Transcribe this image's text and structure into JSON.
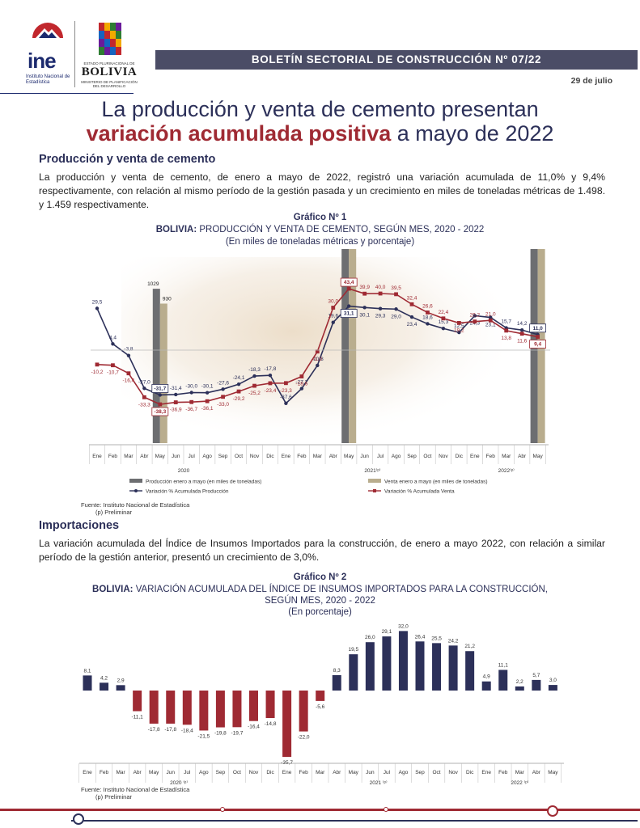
{
  "header": {
    "ine_logo_text": "ine",
    "ine_subtitle": "Instituto Nacional de Estadística",
    "bolivia_small": "ESTADO PLURINACIONAL DE",
    "bolivia_word": "BOLIVIA",
    "bolivia_ministry": "MINISTERIO DE PLANIFICACIÓN DEL DESARROLLO",
    "bulletin_title": "BOLETÍN SECTORIAL DE CONSTRUCCIÓN Nº 07/22",
    "date": "29 de julio"
  },
  "headline": {
    "line1": "La producción y venta de cemento presentan",
    "line2_highlight": "variación acumulada positiva",
    "line2_rest": " a mayo de 2022"
  },
  "section1": {
    "title": "Producción y venta de cemento",
    "paragraph": "La producción y venta de cemento, de enero a mayo de 2022, registró una variación acumulada de 11,0% y 9,4% respectivamente, con relación al mismo período de la gestión pasada y un crecimiento en miles de toneladas métricas de 1.498. y 1.459 respectivamente."
  },
  "chart1_titles": {
    "number": "Gráfico Nº 1",
    "title_prefix": "BOLIVIA:",
    "title_rest": " PRODUCCIÓN Y VENTA DE CEMENTO, SEGÚN MES, 2020 - 2022",
    "subtitle": "(En miles de toneladas métricas y porcentaje)",
    "source": "Fuente: Instituto Nacional de Estadística",
    "note": "(p) Preliminar"
  },
  "section2": {
    "title": "Importaciones",
    "paragraph": "La variación acumulada del Índice de Insumos Importados para la construcción, de enero a mayo 2022, con relación a similar período de la gestión anterior, presentó un crecimiento de 3,0%."
  },
  "chart2_titles": {
    "number": "Gráfico Nº 2",
    "title_prefix": "BOLIVIA:",
    "title_rest": " VARIACIÓN ACUMULADA DEL ÍNDICE DE INSUMOS IMPORTADOS PARA LA CONSTRUCCIÓN,",
    "title_line2": "SEGÚN MES, 2020 - 2022",
    "subtitle": "(En porcentaje)",
    "source": "Fuente: Instituto Nacional de Estadística",
    "note": "(p) Preliminar"
  },
  "colors": {
    "navy": "#2c3059",
    "red": "#9f2a33",
    "bar_gray": "#6d6e71",
    "bar_tan": "#b9ad8e",
    "header_bar": "#4b4d66"
  },
  "chart_data": [
    {
      "type": "line",
      "title": "BOLIVIA: PRODUCCIÓN Y VENTA DE CEMENTO, SEGÚN MES, 2020 - 2022",
      "categories": [
        "Ene",
        "Feb",
        "Mar",
        "Abr",
        "May",
        "Jun",
        "Jul",
        "Ago",
        "Sep",
        "Oct",
        "Nov",
        "Dic",
        "Ene",
        "Feb",
        "Mar",
        "Abr",
        "May",
        "Jun",
        "Jul",
        "Ago",
        "Sep",
        "Oct",
        "Nov",
        "Dic",
        "Ene",
        "Feb",
        "Mar",
        "Abr",
        "May"
      ],
      "year_groups": [
        {
          "label": "2020",
          "start": 0,
          "end": 11
        },
        {
          "label": "2021⁽ᵖ⁾",
          "start": 12,
          "end": 23
        },
        {
          "label": "2022⁽ᵖ⁾",
          "start": 24,
          "end": 28
        }
      ],
      "series": [
        {
          "name": "Variación % Acumulada Producción",
          "color": "#2c3059",
          "values": [
            29.5,
            4.4,
            -3.8,
            -27.0,
            -31.7,
            -31.4,
            -30.0,
            -30.1,
            -27.6,
            -24.1,
            -18.3,
            -17.8,
            -37.6,
            -27.2,
            -10.8,
            19.6,
            31.1,
            30.1,
            29.3,
            29.0,
            23.4,
            18.6,
            15.3,
            12.5,
            24.3,
            23.1,
            15.7,
            14.2,
            11.0
          ],
          "labels": [
            "29,5",
            "4,4",
            "-3,8",
            "-27,0",
            "-31,7",
            "-31,4",
            "-30,0",
            "-30,1",
            "-27,6",
            "-24,1",
            "-18,3",
            "-17,8",
            "-37,6",
            "-27,2",
            "-10,8",
            "19,6",
            "31,1",
            "30,1",
            "29,3",
            "29,0",
            "23,4",
            "18,6",
            "15,3",
            "12,5",
            "24,3",
            "23,1",
            "15,7",
            "14,2",
            "11,0"
          ]
        },
        {
          "name": "Variación % Acumulada Venta",
          "color": "#9f2a33",
          "values": [
            -10.2,
            -10.7,
            -16.4,
            -33.3,
            -38.3,
            -36.9,
            -36.7,
            -36.1,
            -33.0,
            -29.2,
            -25.2,
            -23.4,
            -23.3,
            -18.6,
            -1.0,
            30.0,
            43.4,
            39.9,
            40.0,
            39.5,
            32.4,
            26.6,
            22.4,
            19.2,
            20.2,
            21.0,
            13.8,
            11.6,
            9.4
          ],
          "labels": [
            "-10,2",
            "-10,7",
            "-16,4",
            "-33,3",
            "-38,3",
            "-36,9",
            "-36,7",
            "-36,1",
            "-33,0",
            "-29,2",
            "-25,2",
            "-23,4",
            "-23,3",
            "-18,6",
            "-1,0",
            "30,0",
            "43,4",
            "39,9",
            "40,0",
            "39,5",
            "32,4",
            "26,6",
            "22,4",
            "19,2",
            "20,2",
            "21,0",
            "13,8",
            "11,6",
            "9,4"
          ]
        }
      ],
      "bars": [
        {
          "name": "Producción enero a mayo (en miles de toneladas)",
          "color": "#6d6e71",
          "points": [
            {
              "index": 4,
              "value": 1029,
              "label": "1029"
            },
            {
              "index": 16,
              "value": 1350,
              "label": "1350"
            },
            {
              "index": 28,
              "value": 1498,
              "label": "1498"
            }
          ]
        },
        {
          "name": "Venta enero a mayo (en miles de toneladas)",
          "color": "#b9ad8e",
          "points": [
            {
              "index": 4,
              "value": 930,
              "label": "930"
            },
            {
              "index": 16,
              "value": 1333,
              "label": "1333"
            },
            {
              "index": 28,
              "value": 1459,
              "label": "1459"
            }
          ]
        }
      ],
      "legend": [
        "Producción enero a mayo (en miles de toneladas)",
        "Venta enero a mayo (en miles de toneladas)",
        "Variación % Acumulada Producción",
        "Variación % Acumulada Venta"
      ],
      "legend_position": "bottom",
      "grid": false
    },
    {
      "type": "bar",
      "title": "BOLIVIA: VARIACIÓN ACUMULADA DEL ÍNDICE DE INSUMOS IMPORTADOS PARA LA CONSTRUCCIÓN, SEGÚN MES, 2020 - 2022",
      "categories": [
        "Ene",
        "Feb",
        "Mar",
        "Abr",
        "May",
        "Jun",
        "Jul",
        "Ago",
        "Sep",
        "Oct",
        "Nov",
        "Dic",
        "Ene",
        "Feb",
        "Mar",
        "Abr",
        "May",
        "Jun",
        "Jul",
        "Ago",
        "Sep",
        "Oct",
        "Nov",
        "Dic",
        "Ene",
        "Feb",
        "Mar",
        "Abr",
        "May"
      ],
      "year_groups": [
        {
          "label": "2020 ⁽ᵖ⁾",
          "start": 0,
          "end": 11
        },
        {
          "label": "2021 ⁽ᵖ⁾",
          "start": 12,
          "end": 23
        },
        {
          "label": "2022 ⁽ᵖ⁾",
          "start": 24,
          "end": 28
        }
      ],
      "values": [
        8.1,
        4.2,
        2.9,
        -11.1,
        -17.8,
        -17.8,
        -18.4,
        -21.5,
        -19.8,
        -19.7,
        -16.4,
        -14.8,
        -35.7,
        -22.0,
        -5.6,
        8.3,
        19.5,
        26.0,
        29.1,
        32.0,
        26.4,
        25.5,
        24.2,
        21.2,
        4.9,
        11.1,
        2.2,
        5.7,
        3.0
      ],
      "labels": [
        "8,1",
        "4,2",
        "2,9",
        "-11,1",
        "-17,8",
        "-17,8",
        "-18,4",
        "-21,5",
        "-19,8",
        "-19,7",
        "-16,4",
        "-14,8",
        "-35,7",
        "-22,0",
        "-5,6",
        "8,3",
        "19,5",
        "26,0",
        "29,1",
        "32,0",
        "26,4",
        "25,5",
        "24,2",
        "21,2",
        "4,9",
        "11,1",
        "2,2",
        "5,7",
        "3,0"
      ],
      "positive_color": "#2c3059",
      "negative_color": "#9f2a33",
      "grid": false
    }
  ]
}
